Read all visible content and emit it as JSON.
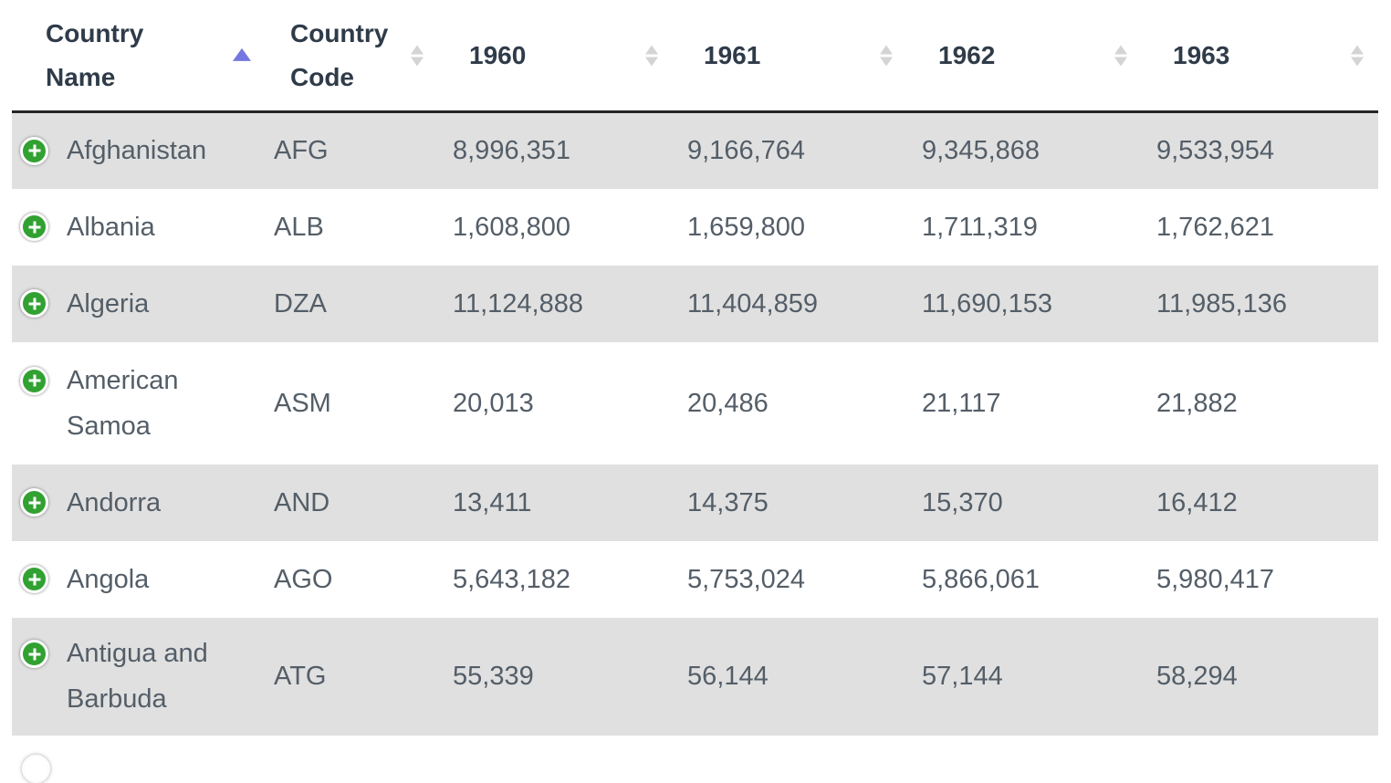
{
  "table": {
    "header": {
      "columns": [
        {
          "label": "Country Name",
          "sort_state": "ascending"
        },
        {
          "label": "Country Code",
          "sort_state": "unsorted"
        },
        {
          "label": "1960",
          "sort_state": "unsorted"
        },
        {
          "label": "1961",
          "sort_state": "unsorted"
        },
        {
          "label": "1962",
          "sort_state": "unsorted"
        },
        {
          "label": "1963",
          "sort_state": "unsorted"
        }
      ]
    },
    "rows": [
      {
        "country_name": "Afghanistan",
        "country_code": "AFG",
        "y1960": "8,996,351",
        "y1961": "9,166,764",
        "y1962": "9,345,868",
        "y1963": "9,533,954"
      },
      {
        "country_name": "Albania",
        "country_code": "ALB",
        "y1960": "1,608,800",
        "y1961": "1,659,800",
        "y1962": "1,711,319",
        "y1963": "1,762,621"
      },
      {
        "country_name": "Algeria",
        "country_code": "DZA",
        "y1960": "11,124,888",
        "y1961": "11,404,859",
        "y1962": "11,690,153",
        "y1963": "11,985,136"
      },
      {
        "country_name": "American Samoa",
        "country_code": "ASM",
        "y1960": "20,013",
        "y1961": "20,486",
        "y1962": "21,117",
        "y1963": "21,882"
      },
      {
        "country_name": "Andorra",
        "country_code": "AND",
        "y1960": "13,411",
        "y1961": "14,375",
        "y1962": "15,370",
        "y1963": "16,412"
      },
      {
        "country_name": "Angola",
        "country_code": "AGO",
        "y1960": "5,643,182",
        "y1961": "5,753,024",
        "y1962": "5,866,061",
        "y1963": "5,980,417"
      },
      {
        "country_name": "Antigua and Barbuda",
        "country_code": "ATG",
        "y1960": "55,339",
        "y1961": "56,144",
        "y1962": "57,144",
        "y1963": "58,294"
      }
    ],
    "expand_icon": "plus-in-green-circle"
  },
  "colors": {
    "stripe_row": "#e0e0e0",
    "expand_button_green": "#31a131",
    "sort_active_arrow": "#7577e0",
    "sort_inactive_arrow": "#d4d4d4",
    "header_text": "#2f3b49",
    "body_text": "#545e68",
    "header_rule": "#252525"
  }
}
